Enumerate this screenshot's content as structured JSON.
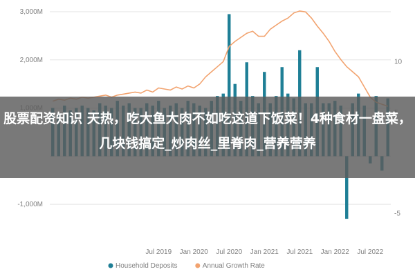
{
  "chart_data": {
    "type": "bar+line",
    "categories": [
      "Jan 2018",
      "Feb 2018",
      "Mar 2018",
      "Apr 2018",
      "May 2018",
      "Jun 2018",
      "Jul 2018",
      "Aug 2018",
      "Sep 2018",
      "Oct 2018",
      "Nov 2018",
      "Dec 2018",
      "Jan 2019",
      "Feb 2019",
      "Mar 2019",
      "Apr 2019",
      "May 2019",
      "Jun 2019",
      "Jul 2019",
      "Aug 2019",
      "Sep 2019",
      "Oct 2019",
      "Nov 2019",
      "Dec 2019",
      "Jan 2020",
      "Feb 2020",
      "Mar 2020",
      "Apr 2020",
      "May 2020",
      "Jun 2020",
      "Jul 2020",
      "Aug 2020",
      "Sep 2020",
      "Oct 2020",
      "Nov 2020",
      "Dec 2020",
      "Jan 2021",
      "Feb 2021",
      "Mar 2021",
      "Apr 2021",
      "May 2021",
      "Jun 2021",
      "Jul 2021",
      "Aug 2021",
      "Sep 2021",
      "Oct 2021",
      "Nov 2021",
      "Dec 2021",
      "Jan 2022",
      "Feb 2022",
      "Mar 2022",
      "Apr 2022",
      "May 2022",
      "Jun 2022",
      "Jul 2022",
      "Aug 2022",
      "Sep 2022",
      "Oct 2022"
    ],
    "series": [
      {
        "name": "Household Deposits",
        "axis": "left",
        "type": "bar",
        "color": "#1f7f96",
        "values": [
          1000,
          900,
          1050,
          950,
          1000,
          1050,
          1000,
          950,
          1100,
          1050,
          1000,
          1150,
          1050,
          1100,
          1000,
          1000,
          1100,
          1050,
          1150,
          1000,
          1050,
          1100,
          1000,
          1150,
          1100,
          1050,
          1000,
          1150,
          1250,
          1300,
          2950,
          1500,
          1150,
          1950,
          1250,
          1100,
          1750,
          1100,
          1250,
          1850,
          1300,
          1200,
          2200,
          1100,
          1100,
          1850,
          1100,
          1100,
          1150,
          1050,
          -1300,
          1100,
          1300,
          1050,
          -150,
          1250,
          -300,
          1200
        ]
      },
      {
        "name": "Annual Growth Rate",
        "axis": "right",
        "type": "line",
        "color": "#f2a36f",
        "values": [
          6.1,
          6.3,
          6.2,
          6.4,
          6.3,
          6.5,
          6.4,
          6.5,
          6.6,
          6.7,
          6.5,
          6.7,
          6.8,
          6.9,
          7.0,
          6.9,
          7.2,
          7.0,
          7.4,
          7.3,
          7.2,
          7.5,
          7.3,
          7.6,
          7.4,
          7.8,
          8.5,
          9.0,
          9.5,
          10.0,
          11.5,
          12.0,
          12.4,
          12.8,
          13.0,
          12.5,
          12.5,
          13.2,
          13.6,
          14.0,
          14.3,
          14.8,
          15.0,
          14.9,
          14.3,
          13.5,
          12.8,
          12.0,
          11.0,
          10.2,
          9.5,
          9.0,
          8.5,
          7.5,
          6.5,
          6.0,
          5.8,
          5.6
        ]
      }
    ],
    "yleft": {
      "ticks": [
        -1000,
        1000,
        2000,
        3000
      ],
      "tick_labels": [
        "-1,000M",
        "1,000M",
        "2,000M",
        "3,000M"
      ],
      "range": [
        -1700,
        3100
      ]
    },
    "yright": {
      "ticks": [
        -5,
        5,
        10
      ],
      "tick_labels": [
        "-5",
        "5",
        "10"
      ],
      "range": [
        -7.4,
        15.4
      ]
    },
    "x_tick_labels": [
      {
        "label": "Jul 2019",
        "index": 18
      },
      {
        "label": "Jan 2020",
        "index": 24
      },
      {
        "label": "Jul 2020",
        "index": 30
      },
      {
        "label": "Jan 2021",
        "index": 36
      },
      {
        "label": "Jul 2021",
        "index": 42
      },
      {
        "label": "Jan 2022",
        "index": 48
      },
      {
        "label": "Jul 2022",
        "index": 54
      }
    ],
    "legend_position": "bottom",
    "grid": "horizontal"
  },
  "overlay": {
    "text": "股票配资知识 天热，吃大鱼大肉不如吃这道下饭菜！4种食材一盘菜，几块钱搞定_炒肉丝_里脊肉_营养营养"
  }
}
